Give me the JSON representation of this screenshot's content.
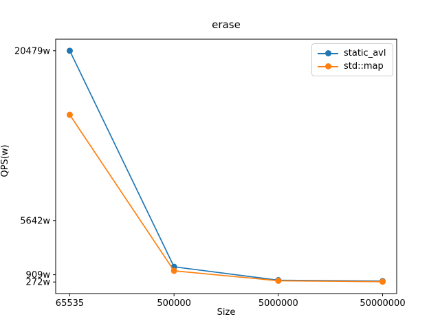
{
  "chart_data": {
    "type": "line",
    "title": "erase",
    "xlabel": "Size",
    "ylabel": "QPS(w)",
    "categories": [
      "65535",
      "500000",
      "5000000",
      "50000000"
    ],
    "series": [
      {
        "name": "static_avl",
        "color": "#1f77b4",
        "values": [
          20479,
          1600,
          430,
          350
        ]
      },
      {
        "name": "std::map",
        "color": "#ff7f0e",
        "values": [
          14880,
          1250,
          380,
          300
        ]
      }
    ],
    "ytick_values": [
      20479,
      5642,
      909,
      272
    ],
    "ytick_labels": [
      "20479w",
      "5642w",
      "909w",
      "272w"
    ],
    "ylim": [
      -738,
      21489
    ],
    "grid": false,
    "legend_position": "upper right",
    "marker": "circle",
    "axis_color": "#000000",
    "background_color": "#ffffff"
  }
}
